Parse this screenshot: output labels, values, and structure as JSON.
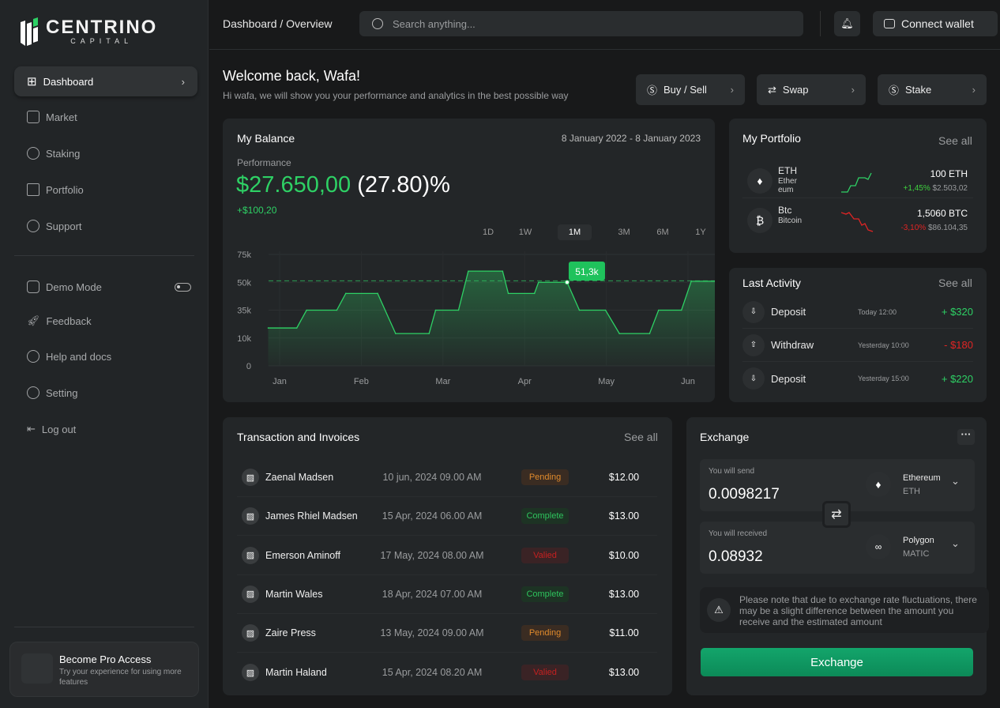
{
  "brand": {
    "name": "CENTRINO",
    "sub": "CAPITAL",
    "accent": "#2ed165"
  },
  "sidebar": {
    "items": [
      {
        "label": "Dashboard",
        "icon": "grid-icon"
      },
      {
        "label": "Market",
        "icon": "bag-icon"
      },
      {
        "label": "Staking",
        "icon": "dollar-icon"
      },
      {
        "label": "Portfolio",
        "icon": "layers-icon"
      },
      {
        "label": "Support",
        "icon": "shield-dollar-icon"
      }
    ],
    "secondary": [
      {
        "label": "Demo Mode",
        "icon": "layout-icon"
      },
      {
        "label": "Feedback",
        "icon": "rocket-icon"
      },
      {
        "label": "Help and docs",
        "icon": "info-icon"
      },
      {
        "label": "Setting",
        "icon": "settings-icon"
      },
      {
        "label": "Log out",
        "icon": "logout-icon"
      }
    ],
    "pro": {
      "title": "Become Pro Access",
      "desc": "Try your experience for using more features"
    }
  },
  "header": {
    "breadcrumb": "Dashboard",
    "breadcrumb_current": "/ Overview",
    "search_placeholder": "Search anything...",
    "connect_wallet": "Connect wallet"
  },
  "welcome": {
    "title": "Welcome back, Wafa!",
    "subtitle": "Hi wafa, we will show you your performance and analytics in the best possible way"
  },
  "actions": [
    {
      "label": "Buy / Sell"
    },
    {
      "label": "Swap"
    },
    {
      "label": "Stake"
    }
  ],
  "balance": {
    "title": "My Balance",
    "range": "8 January 2022 - 8 January 2023",
    "perf_label": "Performance",
    "amount": "$27.650,00",
    "pct": "(27.80)%",
    "change": "+$100,20",
    "tabs": [
      "1D",
      "1W",
      "1M",
      "3M",
      "6M",
      "1Y"
    ],
    "active_tab": "1M"
  },
  "chart_data": {
    "type": "area",
    "xlabel": "",
    "ylabel": "",
    "categories": [
      "Jan",
      "Feb",
      "Mar",
      "Apr",
      "May",
      "Jun"
    ],
    "y_ticks": [
      "0",
      "10k",
      "35k",
      "50k",
      "75k"
    ],
    "y_tick_values": [
      0,
      10,
      35,
      50,
      75
    ],
    "x": [
      -0.14,
      0.21,
      0.33,
      0.7,
      0.81,
      1.2,
      1.42,
      1.83,
      1.91,
      2.19,
      2.31,
      2.73,
      2.8,
      3.12,
      3.17,
      3.52,
      3.67,
      3.99,
      4.16,
      4.53,
      4.64,
      4.92,
      5.04,
      5.33
    ],
    "values": [
      19,
      19,
      35,
      35,
      44,
      44,
      14,
      14,
      35,
      35,
      60,
      60,
      44,
      44,
      50,
      50,
      35,
      35,
      14,
      14,
      35,
      35,
      51,
      51
    ],
    "reference_line": 51.3,
    "tooltip": {
      "x": 3.52,
      "label": "51,3k"
    },
    "grid": true
  },
  "portfolio": {
    "title": "My Portfolio",
    "see_all": "See all",
    "assets": [
      {
        "symbol": "ETH",
        "name": "Ether eum",
        "amount": "100 ETH",
        "change": "+1,45%",
        "value": "$2.503,02",
        "up": true
      },
      {
        "symbol": "Btc",
        "name": "Bitcoin",
        "amount": "1,5060 BTC",
        "change": "-3,10%",
        "value": "$86.104,35",
        "up": false
      }
    ]
  },
  "activity": {
    "title": "Last Activity",
    "see_all": "See all",
    "items": [
      {
        "label": "Deposit",
        "time": "Today 12:00",
        "amount": "+ $320",
        "up": true
      },
      {
        "label": "Withdraw",
        "time": "Yesterday 10:00",
        "amount": "- $180",
        "up": false
      },
      {
        "label": "Deposit",
        "time": "Yesterday 15:00",
        "amount": "+ $220",
        "up": true
      }
    ]
  },
  "transactions": {
    "title": "Transaction and Invoices",
    "see_all": "See all",
    "rows": [
      {
        "name": "Zaenal Madsen",
        "date": "10 jun, 2024 09.00 AM",
        "status": "Pending",
        "amount": "$12.00"
      },
      {
        "name": "James Rhiel Madsen",
        "date": "15 Apr, 2024 06.00 AM",
        "status": "Complete",
        "amount": "$13.00"
      },
      {
        "name": "Emerson Aminoff",
        "date": "17 May, 2024 08.00 AM",
        "status": "Valied",
        "amount": "$10.00"
      },
      {
        "name": "Martin Wales",
        "date": "18 Apr, 2024 07.00 AM",
        "status": "Complete",
        "amount": "$13.00"
      },
      {
        "name": "Zaire Press",
        "date": "13 May, 2024 09.00 AM",
        "status": "Pending",
        "amount": "$11.00"
      },
      {
        "name": "Martin Haland",
        "date": "15 Apr, 2024 08.20 AM",
        "status": "Valied",
        "amount": "$13.00"
      }
    ]
  },
  "exchange": {
    "title": "Exchange",
    "send_label": "You will send",
    "send_value": "0.0098217",
    "send_coin": "Ethereum",
    "send_sym": "ETH",
    "recv_label": "You will received",
    "recv_value": "0.08932",
    "recv_coin": "Polygon",
    "recv_sym": "MATIC",
    "note": "Please note that due to exchange rate fluctuations, there may be a slight difference between the amount you receive and the estimated amount",
    "button": "Exchange"
  }
}
